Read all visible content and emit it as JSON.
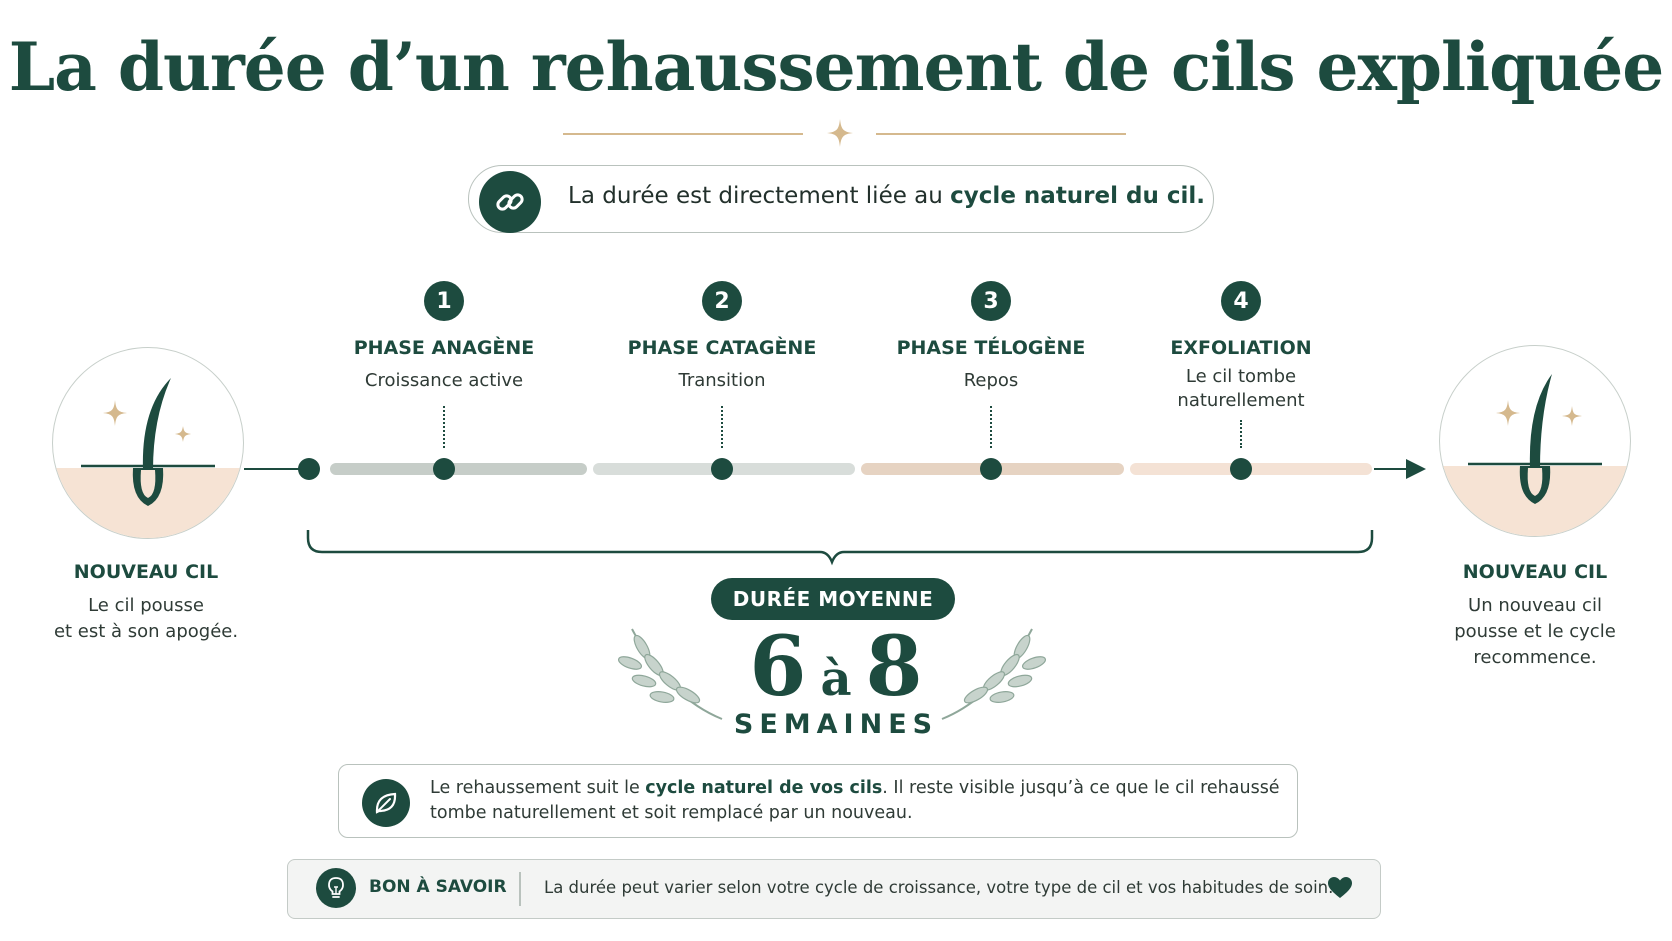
{
  "title": "La durée d’un rehaussement de cils expliquée",
  "intro": {
    "text_before": "La durée est directement liée au ",
    "text_bold": "cycle naturel du cil.",
    "icon": "link-icon"
  },
  "phases": [
    {
      "number": "1",
      "title": "PHASE ANAGÈNE",
      "subtitle": "Croissance active"
    },
    {
      "number": "2",
      "title": "PHASE CATAGÈNE",
      "subtitle": "Transition"
    },
    {
      "number": "3",
      "title": "PHASE TÉLOGÈNE",
      "subtitle": "Repos"
    },
    {
      "number": "4",
      "title": "EXFOLIATION",
      "subtitle_line1": "Le cil tombe",
      "subtitle_line2": "naturellement"
    }
  ],
  "left_end": {
    "title": "NOUVEAU CIL",
    "line1": "Le cil pousse",
    "line2": "et est à son apogée."
  },
  "right_end": {
    "title": "NOUVEAU CIL",
    "line1": "Un nouveau cil",
    "line2": "pousse et le cycle",
    "line3": "recommence."
  },
  "duration": {
    "badge": "DURÉE MOYENNE",
    "min": "6",
    "connector": "à",
    "max": "8",
    "unit": "SEMAINES"
  },
  "info": {
    "text_before": "Le rehaussement suit le ",
    "text_bold": "cycle naturel de vos cils",
    "text_after": ". Il reste visible jusqu’à ce que le cil rehaussé tombe naturellement et soit remplacé par un nouveau.",
    "icon": "leaf-icon"
  },
  "tip": {
    "label": "BON À SAVOIR",
    "text": "La durée peut varier selon votre cycle de croissance, votre type de cil et vos habitudes de soin.",
    "icon": "lightbulb-icon",
    "end_icon": "heart-icon"
  },
  "colors": {
    "primary": "#1d4b3f",
    "gold": "#d5b98e",
    "skin": "#f6e3d4",
    "bar_anagen": "#c6cdc8",
    "bar_catagen": "#d8ddda",
    "bar_telogen": "#e6d3c2",
    "bar_exfoliation": "#f4e2d5"
  }
}
